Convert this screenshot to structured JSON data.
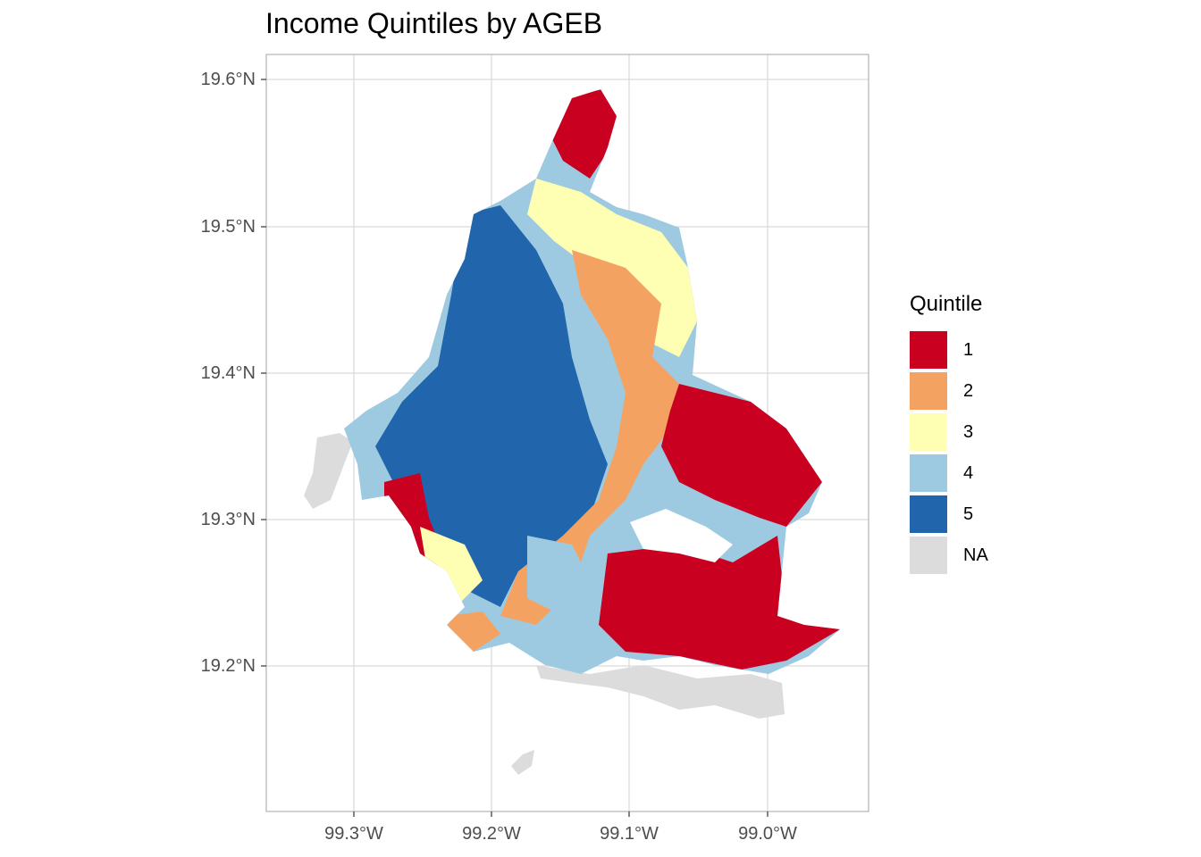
{
  "title": "Income Quintiles by AGEB",
  "axes": {
    "y_ticks": [
      "19.6°N",
      "19.5°N",
      "19.4°N",
      "19.3°N",
      "19.2°N"
    ],
    "x_ticks": [
      "99.3°W",
      "99.2°W",
      "99.1°W",
      "99.0°W"
    ]
  },
  "legend": {
    "title": "Quintile",
    "placement": "right",
    "items": [
      {
        "label": "1",
        "color": "#ca0020"
      },
      {
        "label": "2",
        "color": "#f4a261"
      },
      {
        "label": "3",
        "color": "#ffffb3"
      },
      {
        "label": "4",
        "color": "#9ecae1"
      },
      {
        "label": "5",
        "color": "#2166ac"
      },
      {
        "label": "NA",
        "color": "#dcdcdc"
      }
    ]
  },
  "map": {
    "type": "choropleth",
    "grid": true,
    "background": "#ffffff",
    "panel_border": "#b3b3b3",
    "grid_color": "#d9d9d9"
  }
}
